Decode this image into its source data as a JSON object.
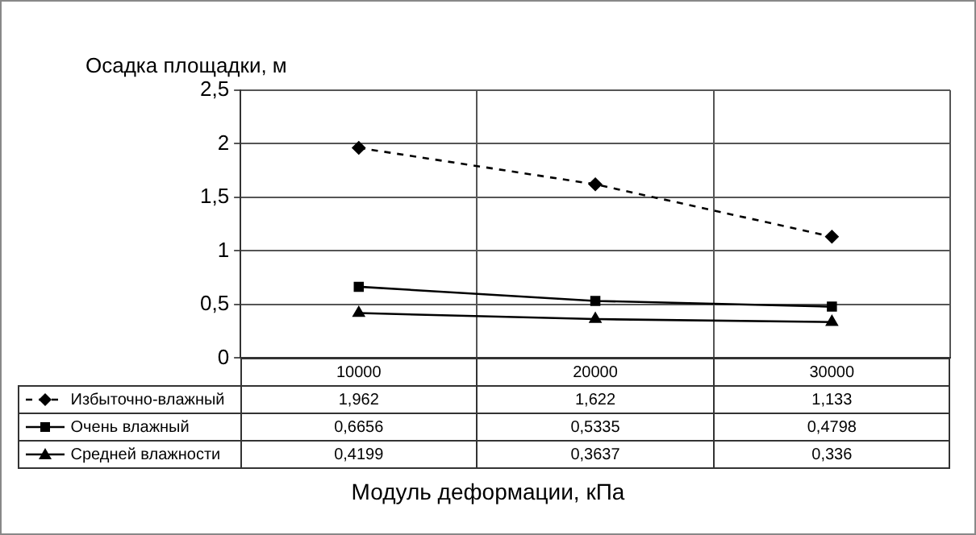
{
  "chart_data": {
    "type": "line",
    "ylabel": "Осадка площадки, м",
    "xlabel": "Модуль деформации, кПа",
    "categories": [
      "10000",
      "20000",
      "30000"
    ],
    "ylim": [
      0,
      2.5
    ],
    "yticks": [
      0,
      {
        "value": 0.5,
        "label": "0,5"
      },
      1,
      {
        "value": 1.5,
        "label": "1,5"
      },
      2,
      {
        "value": 2.5,
        "label": "2,5"
      }
    ],
    "grid": true,
    "legend": "bottom",
    "series": [
      {
        "name": "Избыточно-влажный",
        "color": "#000000",
        "values": [
          1.962,
          1.622,
          1.133
        ],
        "value_labels": [
          "1,962",
          "1,622",
          "1,133"
        ],
        "marker": "diamond",
        "line_style": "dashed"
      },
      {
        "name": "Очень влажный",
        "color": "#000000",
        "values": [
          0.6656,
          0.5335,
          0.4798
        ],
        "value_labels": [
          "0,6656",
          "0,5335",
          "0,4798"
        ],
        "marker": "square",
        "line_style": "solid"
      },
      {
        "name": "Средней влажности",
        "color": "#000000",
        "values": [
          0.4199,
          0.3637,
          0.336
        ],
        "value_labels": [
          "0,4199",
          "0,3637",
          "0,336"
        ],
        "marker": "triangle",
        "line_style": "solid"
      }
    ]
  }
}
